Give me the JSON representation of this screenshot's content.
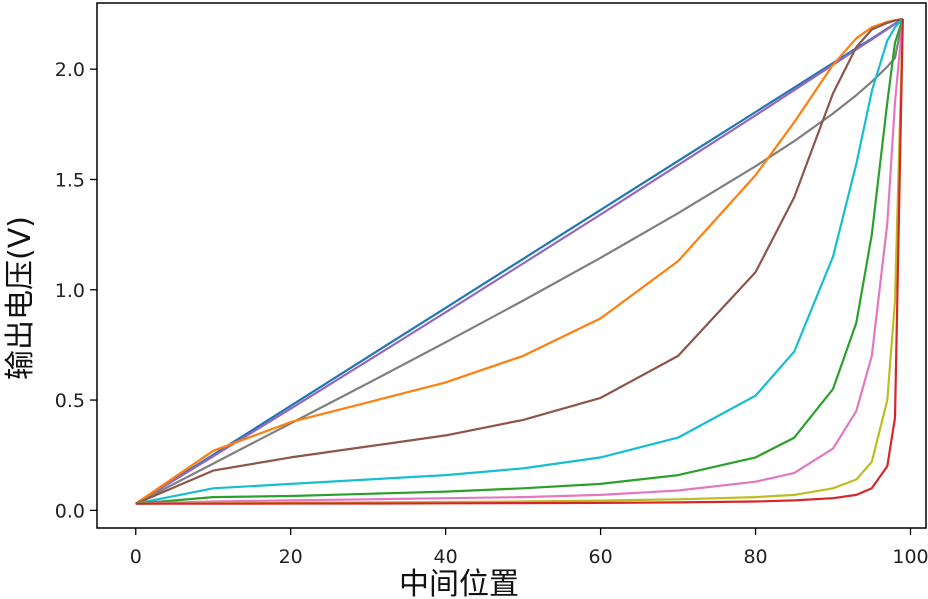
{
  "chart_data": {
    "type": "line",
    "title": "",
    "xlabel": "中间位置",
    "ylabel": "输出电压(V)",
    "xlim": [
      -5,
      102
    ],
    "ylim": [
      -0.08,
      2.3
    ],
    "xticks": [
      0,
      20,
      40,
      60,
      80,
      100
    ],
    "xtick_labels": [
      "0",
      "20",
      "40",
      "60",
      "80",
      "100"
    ],
    "yticks": [
      0.0,
      0.5,
      1.0,
      1.5,
      2.0
    ],
    "ytick_labels": [
      "0.0",
      "0.5",
      "1.0",
      "1.5",
      "2.0"
    ],
    "grid": false,
    "legend": "none",
    "x": [
      0,
      10,
      20,
      30,
      40,
      50,
      60,
      70,
      80,
      85,
      90,
      93,
      95,
      97,
      98,
      99
    ],
    "series": [
      {
        "color": "#1f77b4",
        "values": [
          0.03,
          0.252,
          0.474,
          0.696,
          0.918,
          1.14,
          1.362,
          1.584,
          1.806,
          1.917,
          2.028,
          2.095,
          2.139,
          2.184,
          2.206,
          2.228
        ]
      },
      {
        "color": "#9467bd",
        "values": [
          0.03,
          0.245,
          0.461,
          0.679,
          0.898,
          1.119,
          1.341,
          1.565,
          1.791,
          1.905,
          2.02,
          2.089,
          2.135,
          2.181,
          2.205,
          2.228
        ]
      },
      {
        "color": "#7f7f7f",
        "values": [
          0.03,
          0.212,
          0.394,
          0.577,
          0.762,
          0.951,
          1.145,
          1.347,
          1.56,
          1.674,
          1.799,
          1.882,
          1.943,
          2.011,
          2.051,
          2.228
        ]
      },
      {
        "color": "#ff7f0e",
        "values": [
          0.03,
          0.27,
          0.4,
          0.49,
          0.58,
          0.7,
          0.87,
          1.13,
          1.52,
          1.76,
          2.02,
          2.14,
          2.19,
          2.215,
          2.222,
          2.228
        ]
      },
      {
        "color": "#8c564b",
        "values": [
          0.03,
          0.18,
          0.24,
          0.29,
          0.34,
          0.41,
          0.51,
          0.7,
          1.08,
          1.42,
          1.89,
          2.1,
          2.18,
          2.21,
          2.22,
          2.228
        ]
      },
      {
        "color": "#17becf",
        "values": [
          0.03,
          0.1,
          0.12,
          0.14,
          0.16,
          0.19,
          0.24,
          0.33,
          0.52,
          0.72,
          1.15,
          1.57,
          1.9,
          2.13,
          2.19,
          2.228
        ]
      },
      {
        "color": "#2ca02c",
        "values": [
          0.03,
          0.06,
          0.065,
          0.075,
          0.085,
          0.1,
          0.12,
          0.16,
          0.24,
          0.33,
          0.55,
          0.85,
          1.25,
          1.85,
          2.12,
          2.228
        ]
      },
      {
        "color": "#e377c2",
        "values": [
          0.03,
          0.04,
          0.045,
          0.05,
          0.055,
          0.06,
          0.07,
          0.09,
          0.13,
          0.17,
          0.28,
          0.45,
          0.7,
          1.3,
          1.85,
          2.228
        ]
      },
      {
        "color": "#bcbd22",
        "values": [
          0.03,
          0.032,
          0.034,
          0.036,
          0.038,
          0.04,
          0.044,
          0.05,
          0.06,
          0.07,
          0.1,
          0.14,
          0.22,
          0.5,
          0.95,
          2.228
        ]
      },
      {
        "color": "#d62728",
        "values": [
          0.03,
          0.03,
          0.031,
          0.031,
          0.032,
          0.033,
          0.034,
          0.036,
          0.04,
          0.045,
          0.055,
          0.07,
          0.1,
          0.2,
          0.42,
          2.228
        ]
      }
    ]
  }
}
